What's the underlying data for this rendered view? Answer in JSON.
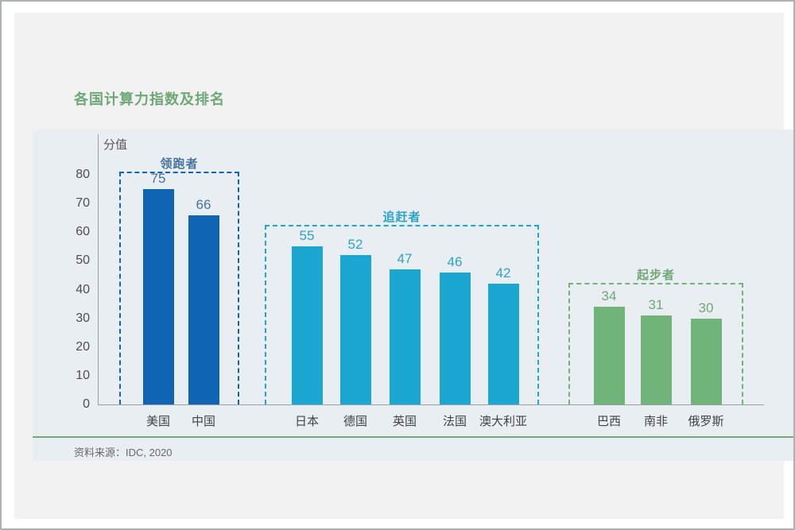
{
  "title": "各国计算力指数及排名",
  "source": "资料来源：IDC, 2020",
  "colors": {
    "title_green": "#6fa877",
    "divider_green": "#75a97a",
    "panel_bg": "#e9eef2",
    "page_bg": "#f2f2f3"
  },
  "chart_data": {
    "type": "bar",
    "title": "各国计算力指数及排名",
    "ylabel": "分值",
    "xlabel": "",
    "ylim": [
      0,
      80
    ],
    "yticks": [
      0,
      10,
      20,
      30,
      40,
      50,
      60,
      70,
      80
    ],
    "grid": false,
    "legend": "none",
    "categories": [
      "美国",
      "中国",
      "日本",
      "德国",
      "英国",
      "法国",
      "澳大利亚",
      "巴西",
      "南非",
      "俄罗斯"
    ],
    "values": [
      75,
      66,
      55,
      52,
      47,
      46,
      42,
      34,
      31,
      30
    ],
    "groups": [
      {
        "name": "领跑者",
        "bar_color": "#0f65b4",
        "text_color": "#46729f",
        "categories": [
          "美国",
          "中国"
        ],
        "values": [
          75,
          66
        ]
      },
      {
        "name": "追赶者",
        "bar_color": "#1ba7d2",
        "text_color": "#2ba4c9",
        "categories": [
          "日本",
          "德国",
          "英国",
          "法国",
          "澳大利亚"
        ],
        "values": [
          55,
          52,
          47,
          46,
          42
        ]
      },
      {
        "name": "起步者",
        "bar_color": "#71b47a",
        "text_color": "#6fa874",
        "categories": [
          "巴西",
          "南非",
          "俄罗斯"
        ],
        "values": [
          34,
          31,
          30
        ]
      }
    ]
  }
}
